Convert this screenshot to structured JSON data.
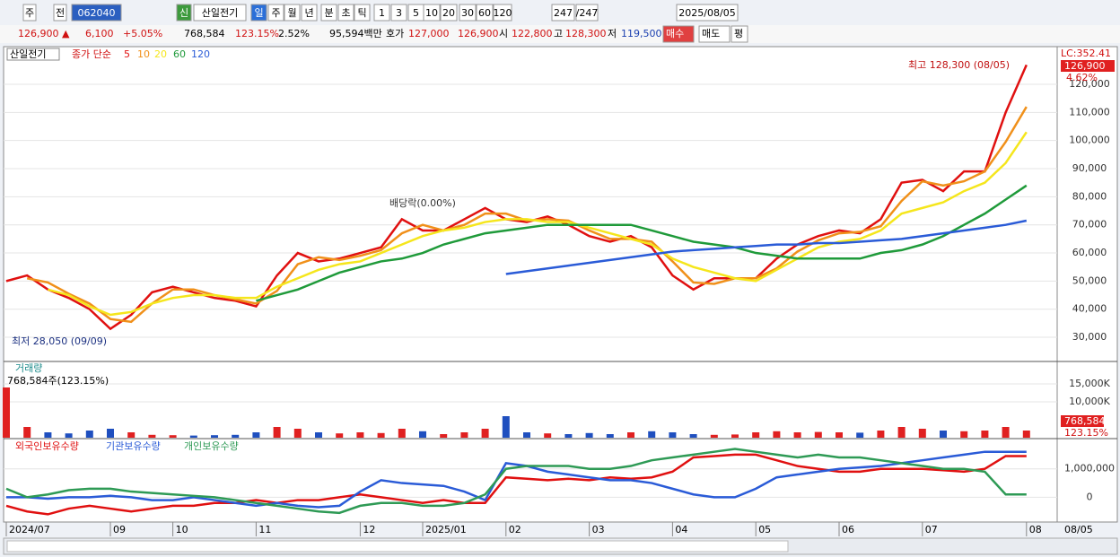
{
  "toolbar": {
    "items": [
      "주",
      "전",
      "062040",
      "신",
      "산일전기",
      "일",
      "주",
      "월",
      "년",
      "분",
      "초",
      "틱",
      "1",
      "3",
      "5",
      "10",
      "20",
      "30",
      "60",
      "120",
      "247",
      "/247",
      "2025/08/05"
    ]
  },
  "info_bar": {
    "items": [
      "126,900 ▲",
      "6,100",
      "+5.05%",
      "768,584",
      "123.15%",
      "2.52%",
      "95,594백만",
      "호가",
      "127,000",
      "126,900",
      "시",
      "122,800",
      "고",
      "128,300",
      "저",
      "119,500",
      "매수",
      "매도",
      "평"
    ]
  },
  "chart_data": [
    {
      "type": "line",
      "stock_label": "산일전기",
      "legend_title": "종가 단순",
      "annotations": [
        "최고 128,300 (08/05)",
        "최저 28,050 (09/09)",
        "배당락(0.00%)",
        "LC:352.41",
        "126,900",
        "4.62%"
      ],
      "ylim": [
        21400,
        133400
      ],
      "yticks": [
        {
          "value": 30000,
          "label": "30,000"
        },
        {
          "value": 40000,
          "label": "40,000"
        },
        {
          "value": 50000,
          "label": "50,000"
        },
        {
          "value": 60000,
          "label": "60,000"
        },
        {
          "value": 70000,
          "label": "70,000"
        },
        {
          "value": 80000,
          "label": "80,000"
        },
        {
          "value": 90000,
          "label": "90,000"
        },
        {
          "value": 100000,
          "label": "100,000"
        },
        {
          "value": 110000,
          "label": "110,000"
        },
        {
          "value": 120000,
          "label": "120,000"
        }
      ],
      "grid": true,
      "series": [
        {
          "name": "5",
          "color": "#e01010",
          "values": [
            50000,
            52000,
            47000,
            44000,
            40000,
            33000,
            38000,
            46000,
            48000,
            46000,
            44000,
            43000,
            41000,
            52000,
            60000,
            57000,
            58000,
            60000,
            62000,
            72000,
            68000,
            68000,
            72000,
            76000,
            72000,
            71000,
            73000,
            70000,
            66000,
            64000,
            66000,
            62000,
            52000,
            47000,
            51000,
            51000,
            51000,
            58000,
            63000,
            66000,
            68000,
            67000,
            72000,
            85000,
            86000,
            82000,
            89000,
            89000,
            110000,
            126900
          ]
        },
        {
          "name": "10",
          "color": "#f0901a",
          "values": [
            null,
            51000,
            49500,
            45500,
            42000,
            36500,
            35500,
            42000,
            47000,
            47000,
            45000,
            43500,
            42000,
            46500,
            56000,
            58500,
            57500,
            59000,
            61000,
            67000,
            70000,
            68000,
            70000,
            74000,
            74000,
            71500,
            72000,
            71500,
            68000,
            65000,
            65000,
            64000,
            57000,
            49500,
            49000,
            51000,
            51000,
            54500,
            60500,
            64500,
            67000,
            67500,
            69500,
            78500,
            85500,
            84000,
            85500,
            89000,
            99500,
            112000
          ]
        },
        {
          "name": "20",
          "color": "#f5e61c",
          "values": [
            null,
            null,
            47000,
            45000,
            41000,
            38000,
            39000,
            42000,
            44000,
            45000,
            45000,
            44000,
            44000,
            48000,
            51000,
            54000,
            56000,
            57000,
            60000,
            63000,
            66000,
            68000,
            69000,
            71000,
            72000,
            72000,
            71000,
            71000,
            69000,
            67000,
            65000,
            63000,
            58000,
            55000,
            53000,
            51000,
            50000,
            54000,
            58000,
            62000,
            64000,
            65000,
            68000,
            74000,
            76000,
            78000,
            82000,
            85000,
            92000,
            103000
          ]
        },
        {
          "name": "60",
          "color": "#1f9a3a",
          "values": [
            null,
            null,
            null,
            null,
            null,
            null,
            null,
            null,
            null,
            null,
            null,
            null,
            43000,
            45000,
            47000,
            50000,
            53000,
            55000,
            57000,
            58000,
            60000,
            63000,
            65000,
            67000,
            68000,
            69000,
            70000,
            70000,
            70000,
            70000,
            70000,
            68000,
            66000,
            64000,
            63000,
            62000,
            60000,
            59000,
            58000,
            58000,
            58000,
            58000,
            60000,
            61000,
            63000,
            66000,
            70000,
            74000,
            79000,
            84000
          ]
        },
        {
          "name": "120",
          "color": "#2a5bd7",
          "values": [
            null,
            null,
            null,
            null,
            null,
            null,
            null,
            null,
            null,
            null,
            null,
            null,
            null,
            null,
            null,
            null,
            null,
            null,
            null,
            null,
            null,
            null,
            null,
            null,
            52500,
            53500,
            54500,
            55500,
            56500,
            57500,
            58500,
            59500,
            60500,
            61000,
            61500,
            62000,
            62500,
            63000,
            63000,
            63500,
            63500,
            64000,
            64500,
            65000,
            66000,
            67000,
            68000,
            69000,
            70000,
            71500
          ]
        }
      ]
    },
    {
      "type": "bar",
      "title": "거래량",
      "subtitle": "768,584주(123.15%)",
      "side_labels": [
        "768,584",
        "123.15%"
      ],
      "ylim": [
        0,
        20750
      ],
      "yticks": [
        {
          "value": 10000,
          "label": "10,000K"
        },
        {
          "value": 15000,
          "label": "15,000K"
        }
      ],
      "up_color": "#e02020",
      "down_color": "#1f4fbf",
      "values": [
        14000,
        3000,
        1500,
        1200,
        2000,
        2500,
        1500,
        800,
        700,
        600,
        700,
        800,
        1500,
        3000,
        2500,
        1500,
        1200,
        1500,
        1300,
        2500,
        1800,
        1000,
        1500,
        2500,
        6000,
        1500,
        1200,
        1000,
        1300,
        1000,
        1500,
        1800,
        1500,
        1000,
        800,
        900,
        1500,
        1800,
        1500,
        1600,
        1500,
        1400,
        2000,
        3000,
        2500,
        2000,
        1800,
        2000,
        3000,
        2000
      ]
    },
    {
      "type": "line",
      "ylim": [
        -871000,
        2032000
      ],
      "yticks": [
        0,
        {
          "value": 1000000,
          "label": "1,000,000"
        }
      ],
      "categories": [
        "2024/07",
        null,
        null,
        null,
        null,
        "09",
        null,
        null,
        "10",
        null,
        null,
        null,
        "11",
        null,
        null,
        null,
        null,
        "12",
        null,
        null,
        "2025/01",
        null,
        null,
        null,
        "02",
        null,
        null,
        null,
        "03",
        null,
        null,
        null,
        "04",
        null,
        null,
        null,
        "05",
        null,
        null,
        null,
        "06",
        null,
        null,
        null,
        "07",
        null,
        null,
        null,
        null,
        "08"
      ],
      "x_end_label": "08/05",
      "series": [
        {
          "name": "외국인보유수량",
          "color": "#e01010",
          "values": [
            -300000,
            -500000,
            -600000,
            -400000,
            -300000,
            -400000,
            -500000,
            -400000,
            -300000,
            -300000,
            -200000,
            -200000,
            -100000,
            -200000,
            -100000,
            -100000,
            0,
            100000,
            0,
            -100000,
            -200000,
            -100000,
            -200000,
            -200000,
            700000,
            650000,
            600000,
            650000,
            600000,
            700000,
            650000,
            700000,
            900000,
            1400000,
            1450000,
            1500000,
            1500000,
            1300000,
            1100000,
            1000000,
            900000,
            900000,
            1000000,
            1000000,
            1000000,
            950000,
            900000,
            1000000,
            1450000,
            1450000
          ]
        },
        {
          "name": "기관보유수량",
          "color": "#2a5bd7",
          "values": [
            0,
            0,
            -50000,
            0,
            0,
            50000,
            0,
            -100000,
            -100000,
            0,
            -100000,
            -200000,
            -300000,
            -200000,
            -300000,
            -350000,
            -300000,
            200000,
            600000,
            500000,
            450000,
            400000,
            200000,
            -100000,
            1200000,
            1100000,
            900000,
            800000,
            700000,
            600000,
            600000,
            500000,
            300000,
            100000,
            0,
            0,
            300000,
            700000,
            800000,
            900000,
            1000000,
            1050000,
            1100000,
            1200000,
            1300000,
            1400000,
            1500000,
            1600000,
            1600000,
            1600000
          ]
        },
        {
          "name": "개인보유수량",
          "color": "#2e9a55",
          "values": [
            300000,
            0,
            100000,
            250000,
            300000,
            300000,
            200000,
            150000,
            100000,
            50000,
            0,
            -100000,
            -200000,
            -300000,
            -400000,
            -500000,
            -550000,
            -300000,
            -200000,
            -200000,
            -300000,
            -300000,
            -200000,
            100000,
            1000000,
            1100000,
            1100000,
            1100000,
            1000000,
            1000000,
            1100000,
            1300000,
            1400000,
            1500000,
            1600000,
            1700000,
            1600000,
            1500000,
            1400000,
            1500000,
            1400000,
            1400000,
            1300000,
            1200000,
            1100000,
            1000000,
            1000000,
            900000,
            100000,
            100000
          ]
        }
      ]
    }
  ]
}
